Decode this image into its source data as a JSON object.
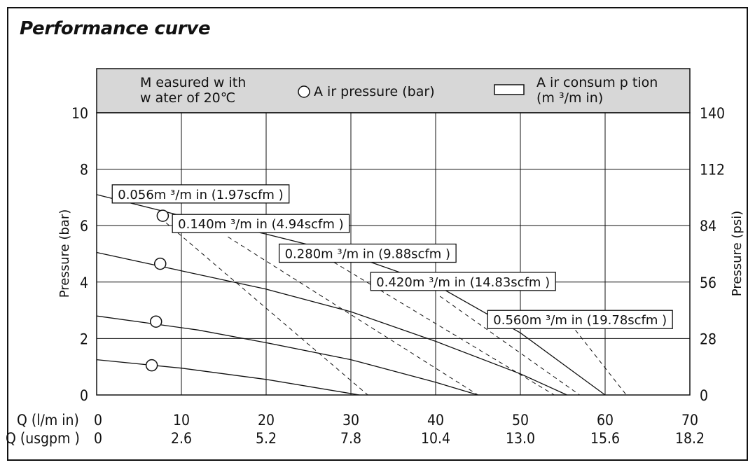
{
  "page": {
    "title": "Performance curve"
  },
  "chart_data": {
    "type": "line",
    "title": "Performance curve",
    "xlabel_primary": "Q (l/m in)",
    "xlabel_secondary": "Q (usgpm )",
    "ylabel_left": "Pressure (bar)",
    "ylabel_right": "Pressure (psi)",
    "xlim": [
      0,
      70
    ],
    "ylim": [
      0,
      10
    ],
    "x_ticks": [
      0,
      10,
      20,
      30,
      40,
      50,
      60,
      70
    ],
    "x_ticks_usgpm": [
      "0",
      "2.6",
      "5.2",
      "7.8",
      "10.4",
      "13.0",
      "15.6",
      "18.2"
    ],
    "y_ticks_left": [
      0,
      2,
      4,
      6,
      8,
      10
    ],
    "y_ticks_right": [
      0,
      28,
      56,
      84,
      112,
      140
    ],
    "grid": true,
    "legend": {
      "measured_line1": "M easured w ith",
      "measured_line2": "w ater of 20℃",
      "air_pressure": "A ir pressure (bar)",
      "air_consumption_line1": "A ir consum p tion",
      "air_consumption_line2": "(m ³/m in)"
    },
    "pressure_curves": [
      {
        "air_pressure_bar": 7,
        "points": [
          [
            0,
            7.1
          ],
          [
            10,
            6.35
          ],
          [
            20,
            5.7
          ],
          [
            30,
            4.95
          ],
          [
            40,
            3.9
          ],
          [
            50,
            2.2
          ],
          [
            60,
            0
          ]
        ],
        "marker_x": 7.8,
        "marker_y": 6.35
      },
      {
        "air_pressure_bar": 5,
        "points": [
          [
            0,
            5.05
          ],
          [
            10,
            4.4
          ],
          [
            20,
            3.75
          ],
          [
            30,
            2.95
          ],
          [
            40,
            1.9
          ],
          [
            50,
            0.75
          ],
          [
            55.5,
            0
          ]
        ],
        "marker_x": 7.5,
        "marker_y": 4.65
      },
      {
        "air_pressure_bar": 3,
        "points": [
          [
            0,
            2.8
          ],
          [
            12,
            2.3
          ],
          [
            20,
            1.85
          ],
          [
            30,
            1.25
          ],
          [
            40,
            0.45
          ],
          [
            45,
            0
          ]
        ],
        "marker_x": 7,
        "marker_y": 2.6
      },
      {
        "air_pressure_bar": 1,
        "points": [
          [
            0,
            1.25
          ],
          [
            10,
            0.95
          ],
          [
            20,
            0.55
          ],
          [
            31,
            0
          ]
        ],
        "marker_x": 6.5,
        "marker_y": 1.05
      }
    ],
    "consumption_curves": [
      {
        "label": "0.056m ³/m in (1.97scfm )",
        "points": [
          [
            8.2,
            6.1
          ],
          [
            32,
            0
          ]
        ],
        "label_x": 2.5,
        "label_y": 7.0
      },
      {
        "label": "0.140m ³/m in (4.94scfm )",
        "points": [
          [
            15.5,
            5.6
          ],
          [
            45,
            0
          ]
        ],
        "label_x": 9.6,
        "label_y": 5.95
      },
      {
        "label": "0.280m ³/m in (9.88scfm )",
        "points": [
          [
            28,
            4.7
          ],
          [
            54,
            0
          ]
        ],
        "label_x": 22.2,
        "label_y": 4.9
      },
      {
        "label": "0.420m ³/m in (14.83scfm )",
        "points": [
          [
            40.5,
            3.5
          ],
          [
            57,
            0
          ]
        ],
        "label_x": 33,
        "label_y": 3.9
      },
      {
        "label": "0.560m ³/m in (19.78scfm )",
        "points": [
          [
            56.5,
            2.3
          ],
          [
            62.5,
            0
          ]
        ],
        "label_x": 46.8,
        "label_y": 2.55
      }
    ]
  }
}
